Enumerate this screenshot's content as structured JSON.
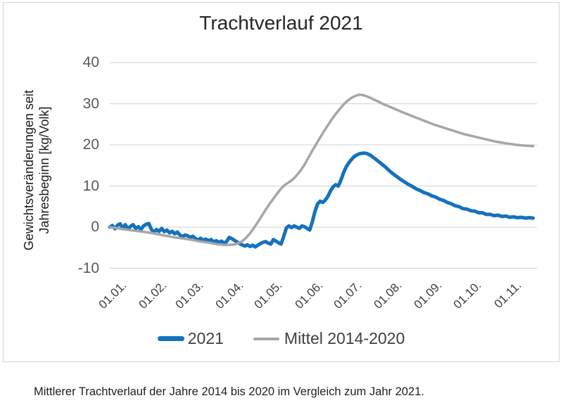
{
  "caption": "Mittlerer Trachtverlauf der Jahre 2014 bis 2020 im Vergleich zum Jahr 2021.",
  "colors": {
    "series_2021": "#1572bd",
    "series_mittel": "#a6a6a6",
    "gridline": "#d9d9d9",
    "y_tick_text": "#595959",
    "x_tick_text": "#3f3f3f",
    "title_text": "#262626",
    "card_border": "#d6d6d6"
  },
  "chart_data": {
    "type": "line",
    "title": "Trachtverlauf 2021",
    "ylabel": "Gewichtsveränderungen seit Jahresbeginn [kg/Volk]",
    "ylabel_line1": "Gewichtsveränderungen seit",
    "ylabel_line2": "Jahresbeginn [kg/Volk]",
    "xlabel": "",
    "ylim": [
      -10,
      40
    ],
    "y_ticks": [
      "40",
      "30",
      "20",
      "10",
      "0",
      "-10"
    ],
    "y_tick_values": [
      40,
      30,
      20,
      10,
      0,
      -10
    ],
    "x_tick_labels": [
      "01.01.",
      "01.02.",
      "01.03.",
      "01.04.",
      "01.05.",
      "01.06.",
      "01.07.",
      "01.08.",
      "01.09.",
      "01.10.",
      "01.11."
    ],
    "x_tick_days": [
      1,
      32,
      60,
      91,
      121,
      152,
      182,
      213,
      244,
      274,
      305
    ],
    "x_unit": "day of year",
    "x_range_days": [
      1,
      330
    ],
    "grid": "horizontal",
    "legend_position": "bottom",
    "series": [
      {
        "name": "2021",
        "color": "#1572bd",
        "stroke_width": 5,
        "points": [
          [
            1,
            0
          ],
          [
            3,
            0.4
          ],
          [
            5,
            -0.4
          ],
          [
            7,
            0.5
          ],
          [
            9,
            0.8
          ],
          [
            11,
            -0.2
          ],
          [
            13,
            0.6
          ],
          [
            15,
            -0.5
          ],
          [
            17,
            0.2
          ],
          [
            19,
            0.6
          ],
          [
            21,
            -0.3
          ],
          [
            23,
            0.1
          ],
          [
            25,
            -0.6
          ],
          [
            27,
            0.3
          ],
          [
            29,
            0.7
          ],
          [
            31,
            0.9
          ],
          [
            33,
            -0.5
          ],
          [
            35,
            -1.2
          ],
          [
            37,
            -0.6
          ],
          [
            39,
            -1.0
          ],
          [
            41,
            -0.3
          ],
          [
            43,
            -1.1
          ],
          [
            45,
            -0.7
          ],
          [
            47,
            -1.4
          ],
          [
            49,
            -1.0
          ],
          [
            51,
            -1.6
          ],
          [
            53,
            -1.2
          ],
          [
            55,
            -1.9
          ],
          [
            57,
            -2.3
          ],
          [
            59,
            -1.9
          ],
          [
            61,
            -2.1
          ],
          [
            63,
            -2.5
          ],
          [
            65,
            -2.2
          ],
          [
            67,
            -2.8
          ],
          [
            69,
            -3.1
          ],
          [
            71,
            -2.7
          ],
          [
            73,
            -3.2
          ],
          [
            75,
            -2.9
          ],
          [
            77,
            -3.3
          ],
          [
            79,
            -3.0
          ],
          [
            81,
            -3.6
          ],
          [
            83,
            -3.3
          ],
          [
            85,
            -3.7
          ],
          [
            87,
            -3.4
          ],
          [
            89,
            -3.9
          ],
          [
            91,
            -3.5
          ],
          [
            93,
            -2.5
          ],
          [
            95,
            -2.8
          ],
          [
            97,
            -3.2
          ],
          [
            99,
            -3.6
          ],
          [
            101,
            -4.0
          ],
          [
            103,
            -4.3
          ],
          [
            105,
            -4.6
          ],
          [
            107,
            -4.3
          ],
          [
            109,
            -4.7
          ],
          [
            111,
            -4.4
          ],
          [
            113,
            -4.8
          ],
          [
            115,
            -4.4
          ],
          [
            117,
            -4.0
          ],
          [
            119,
            -3.7
          ],
          [
            121,
            -3.5
          ],
          [
            123,
            -3.9
          ],
          [
            125,
            -4.1
          ],
          [
            127,
            -3.0
          ],
          [
            129,
            -3.4
          ],
          [
            131,
            -3.8
          ],
          [
            133,
            -4.1
          ],
          [
            135,
            -2.2
          ],
          [
            137,
            -0.2
          ],
          [
            139,
            0.3
          ],
          [
            141,
            -0.1
          ],
          [
            143,
            0.3
          ],
          [
            145,
            0.0
          ],
          [
            147,
            -0.3
          ],
          [
            149,
            0.3
          ],
          [
            151,
            0.1
          ],
          [
            153,
            -0.3
          ],
          [
            155,
            -0.7
          ],
          [
            157,
            1.3
          ],
          [
            159,
            3.8
          ],
          [
            161,
            5.6
          ],
          [
            163,
            6.3
          ],
          [
            165,
            6.0
          ],
          [
            167,
            6.6
          ],
          [
            169,
            7.5
          ],
          [
            171,
            8.8
          ],
          [
            173,
            9.8
          ],
          [
            175,
            10.3
          ],
          [
            177,
            10.0
          ],
          [
            179,
            11.4
          ],
          [
            181,
            13.2
          ],
          [
            183,
            14.6
          ],
          [
            185,
            15.6
          ],
          [
            187,
            16.4
          ],
          [
            189,
            17.1
          ],
          [
            191,
            17.5
          ],
          [
            193,
            17.8
          ],
          [
            195,
            17.95
          ],
          [
            197,
            18.0
          ],
          [
            199,
            17.9
          ],
          [
            201,
            17.6
          ],
          [
            203,
            17.2
          ],
          [
            205,
            16.7
          ],
          [
            207,
            16.2
          ],
          [
            209,
            15.7
          ],
          [
            211,
            15.2
          ],
          [
            213,
            14.7
          ],
          [
            216,
            13.8
          ],
          [
            219,
            13.0
          ],
          [
            222,
            12.3
          ],
          [
            225,
            11.6
          ],
          [
            228,
            11.0
          ],
          [
            231,
            10.4
          ],
          [
            234,
            9.9
          ],
          [
            237,
            9.3
          ],
          [
            240,
            8.9
          ],
          [
            243,
            8.4
          ],
          [
            246,
            8.1
          ],
          [
            249,
            7.6
          ],
          [
            252,
            7.3
          ],
          [
            255,
            6.8
          ],
          [
            258,
            6.5
          ],
          [
            261,
            6.0
          ],
          [
            264,
            5.7
          ],
          [
            267,
            5.2
          ],
          [
            270,
            5.0
          ],
          [
            273,
            4.5
          ],
          [
            276,
            4.4
          ],
          [
            279,
            4.0
          ],
          [
            282,
            3.9
          ],
          [
            285,
            3.5
          ],
          [
            288,
            3.5
          ],
          [
            291,
            3.1
          ],
          [
            294,
            3.1
          ],
          [
            297,
            2.8
          ],
          [
            300,
            2.9
          ],
          [
            303,
            2.6
          ],
          [
            306,
            2.7
          ],
          [
            309,
            2.4
          ],
          [
            312,
            2.5
          ],
          [
            315,
            2.3
          ],
          [
            318,
            2.4
          ],
          [
            321,
            2.2
          ],
          [
            324,
            2.3
          ],
          [
            327,
            2.2
          ]
        ]
      },
      {
        "name": "Mittel 2014-2020",
        "color": "#a6a6a6",
        "stroke_width": 3.5,
        "points": [
          [
            1,
            0
          ],
          [
            6,
            -0.2
          ],
          [
            11,
            -0.5
          ],
          [
            16,
            -0.7
          ],
          [
            21,
            -0.9
          ],
          [
            26,
            -1.1
          ],
          [
            31,
            -1.3
          ],
          [
            36,
            -1.6
          ],
          [
            41,
            -1.9
          ],
          [
            46,
            -2.2
          ],
          [
            51,
            -2.5
          ],
          [
            56,
            -2.7
          ],
          [
            61,
            -2.9
          ],
          [
            66,
            -3.2
          ],
          [
            71,
            -3.5
          ],
          [
            76,
            -3.7
          ],
          [
            81,
            -4.0
          ],
          [
            85,
            -4.2
          ],
          [
            89,
            -4.3
          ],
          [
            93,
            -4.3
          ],
          [
            97,
            -4.2
          ],
          [
            100,
            -3.9
          ],
          [
            103,
            -3.4
          ],
          [
            106,
            -2.6
          ],
          [
            109,
            -1.5
          ],
          [
            112,
            -0.2
          ],
          [
            115,
            1.2
          ],
          [
            118,
            2.7
          ],
          [
            121,
            4.2
          ],
          [
            124,
            5.6
          ],
          [
            127,
            6.9
          ],
          [
            130,
            8.2
          ],
          [
            133,
            9.4
          ],
          [
            136,
            10.3
          ],
          [
            139,
            10.9
          ],
          [
            142,
            11.6
          ],
          [
            145,
            12.6
          ],
          [
            148,
            13.8
          ],
          [
            151,
            15.2
          ],
          [
            154,
            16.9
          ],
          [
            157,
            18.6
          ],
          [
            160,
            20.2
          ],
          [
            163,
            21.8
          ],
          [
            166,
            23.3
          ],
          [
            169,
            24.8
          ],
          [
            172,
            26.2
          ],
          [
            175,
            27.5
          ],
          [
            178,
            28.7
          ],
          [
            181,
            29.8
          ],
          [
            184,
            30.7
          ],
          [
            187,
            31.4
          ],
          [
            190,
            31.9
          ],
          [
            193,
            32.2
          ],
          [
            196,
            32.1
          ],
          [
            199,
            31.8
          ],
          [
            202,
            31.4
          ],
          [
            205,
            30.9
          ],
          [
            208,
            30.5
          ],
          [
            211,
            30.0
          ],
          [
            214,
            29.6
          ],
          [
            217,
            29.2
          ],
          [
            220,
            28.8
          ],
          [
            223,
            28.4
          ],
          [
            226,
            28.0
          ],
          [
            230,
            27.5
          ],
          [
            234,
            27.0
          ],
          [
            238,
            26.5
          ],
          [
            242,
            26.0
          ],
          [
            246,
            25.5
          ],
          [
            250,
            25.0
          ],
          [
            254,
            24.6
          ],
          [
            258,
            24.2
          ],
          [
            262,
            23.8
          ],
          [
            266,
            23.4
          ],
          [
            270,
            23.0
          ],
          [
            274,
            22.6
          ],
          [
            278,
            22.3
          ],
          [
            282,
            22.0
          ],
          [
            286,
            21.7
          ],
          [
            290,
            21.4
          ],
          [
            294,
            21.1
          ],
          [
            298,
            20.8
          ],
          [
            302,
            20.6
          ],
          [
            306,
            20.4
          ],
          [
            310,
            20.2
          ],
          [
            314,
            20.0
          ],
          [
            318,
            19.9
          ],
          [
            322,
            19.8
          ],
          [
            327,
            19.7
          ]
        ]
      }
    ]
  }
}
